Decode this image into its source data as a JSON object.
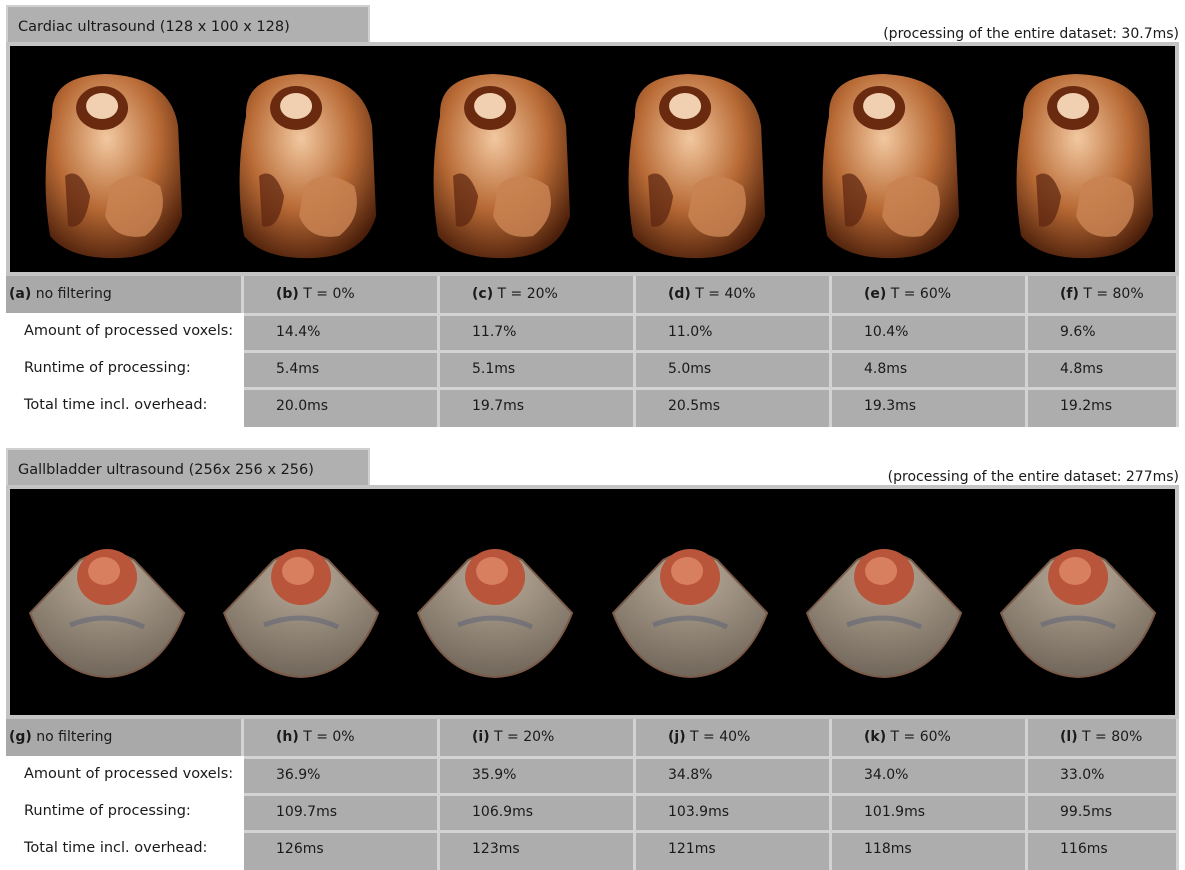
{
  "sections": [
    {
      "title": "Cardiac ultrasound (128 x 100 x 128)",
      "note": "(processing of the entire dataset: 30.7ms)",
      "image_kind": "cardiac",
      "headers": [
        {
          "letter": "(a)",
          "text": " no filtering"
        },
        {
          "letter": "(b)",
          "text": " T = 0%"
        },
        {
          "letter": "(c)",
          "text": " T = 20%"
        },
        {
          "letter": "(d)",
          "text": " T = 40%"
        },
        {
          "letter": "(e)",
          "text": " T = 60%"
        },
        {
          "letter": "(f)",
          "text": " T = 80%"
        }
      ],
      "rows": [
        {
          "label": "Amount of processed voxels:",
          "values": [
            "14.4%",
            "11.7%",
            "11.0%",
            "10.4%",
            "9.6%"
          ]
        },
        {
          "label": "Runtime of processing:",
          "values": [
            "5.4ms",
            "5.1ms",
            "5.0ms",
            "4.8ms",
            "4.8ms"
          ]
        },
        {
          "label": "Total time incl. overhead:",
          "values": [
            "20.0ms",
            "19.7ms",
            "20.5ms",
            "19.3ms",
            "19.2ms"
          ]
        }
      ]
    },
    {
      "title": "Gallbladder ultrasound (256x 256 x 256)",
      "note": "(processing of the entire dataset: 277ms)",
      "image_kind": "gallbladder",
      "headers": [
        {
          "letter": "(g)",
          "text": " no filtering"
        },
        {
          "letter": "(h)",
          "text": " T = 0%"
        },
        {
          "letter": "(i)",
          "text": " T = 20%"
        },
        {
          "letter": "(j)",
          "text": " T = 40%"
        },
        {
          "letter": "(k)",
          "text": " T = 60%"
        },
        {
          "letter": "(l)",
          "text": " T = 80%"
        }
      ],
      "rows": [
        {
          "label": "Amount of processed voxels:",
          "values": [
            "36.9%",
            "35.9%",
            "34.8%",
            "34.0%",
            "33.0%"
          ]
        },
        {
          "label": "Runtime of processing:",
          "values": [
            "109.7ms",
            "106.9ms",
            "103.9ms",
            "101.9ms",
            "99.5ms"
          ]
        },
        {
          "label": "Total time incl. overhead:",
          "values": [
            "126ms",
            "123ms",
            "121ms",
            "118ms",
            "116ms"
          ]
        }
      ]
    }
  ],
  "colors": {
    "panel_bg": "#c4c4c4",
    "cell_bg": "#adadad",
    "image_bg": "#000000",
    "tissue": "#c47a45",
    "gallbladder": "#8a7d70"
  }
}
